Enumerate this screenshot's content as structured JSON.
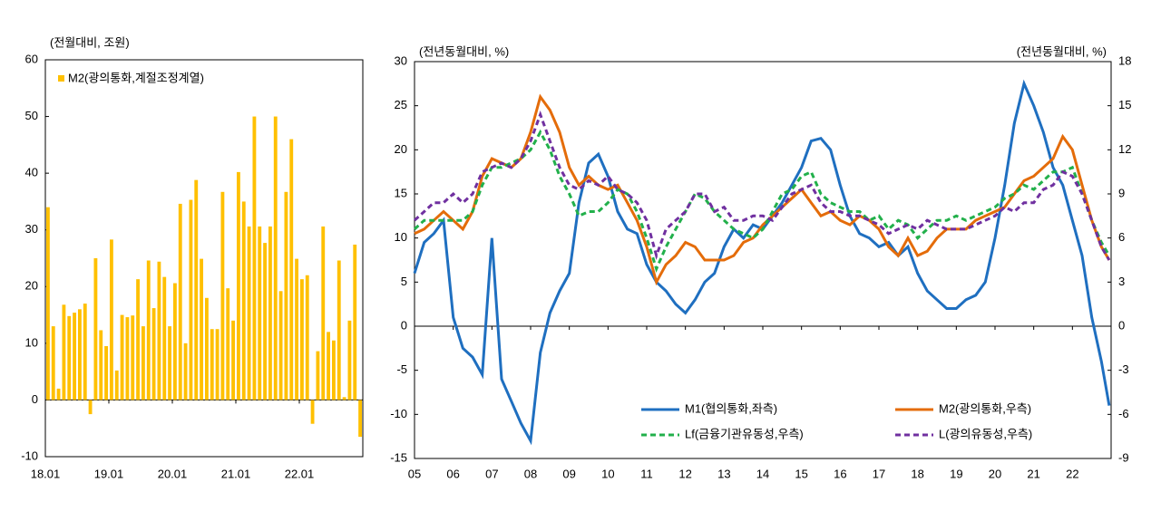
{
  "chart_data": [
    {
      "type": "bar",
      "ylabel": "(전월대비, 조원)",
      "categories": [
        "18.01",
        null,
        null,
        null,
        null,
        null,
        null,
        null,
        null,
        null,
        null,
        null,
        "19.01",
        null,
        null,
        null,
        null,
        null,
        null,
        null,
        null,
        null,
        null,
        null,
        "20.01",
        null,
        null,
        null,
        null,
        null,
        null,
        null,
        null,
        null,
        null,
        null,
        "21.01",
        null,
        null,
        null,
        null,
        null,
        null,
        null,
        null,
        null,
        null,
        null,
        "22.01",
        null,
        null,
        null,
        null,
        null,
        null,
        null,
        null,
        null,
        null,
        null
      ],
      "series": [
        {
          "name": "M2(광의통화,계절조정계열)",
          "color": "#ffc000",
          "values": [
            34,
            13,
            2,
            16.8,
            14.8,
            15.4,
            16,
            17,
            -2.5,
            25,
            12.3,
            9.5,
            28.3,
            5.2,
            15,
            14.6,
            14.9,
            21.3,
            13,
            24.6,
            16.2,
            24.4,
            21.7,
            13,
            20.6,
            34.6,
            10,
            35.3,
            38.8,
            24.9,
            18,
            12.5,
            12.5,
            36.7,
            19.7,
            14,
            40.2,
            35,
            30.6,
            50,
            30.6,
            27.7,
            30.6,
            50,
            19.2,
            36.7,
            46,
            24.9,
            21.3,
            22,
            -4.2,
            8.6,
            30.6,
            12,
            10.5,
            24.6,
            0.5,
            14,
            27.4,
            -6.5
          ]
        }
      ],
      "ylim": [
        -10,
        60
      ],
      "yticks": [
        -10,
        0,
        10,
        20,
        30,
        40,
        50,
        60
      ],
      "legend": "top-left"
    },
    {
      "type": "line",
      "ylabel": "(전년동월대비, %)",
      "y2label": "(전년동월대비, %)",
      "x": [
        2005,
        2005.25,
        2005.5,
        2005.75,
        2006,
        2006.25,
        2006.5,
        2006.75,
        2007,
        2007.25,
        2007.5,
        2007.75,
        2008,
        2008.25,
        2008.5,
        2008.75,
        2009,
        2009.25,
        2009.5,
        2009.75,
        2010,
        2010.25,
        2010.5,
        2010.75,
        2011,
        2011.25,
        2011.5,
        2011.75,
        2012,
        2012.25,
        2012.5,
        2012.75,
        2013,
        2013.25,
        2013.5,
        2013.75,
        2014,
        2014.25,
        2014.5,
        2014.75,
        2015,
        2015.25,
        2015.5,
        2015.75,
        2016,
        2016.25,
        2016.5,
        2016.75,
        2017,
        2017.25,
        2017.5,
        2017.75,
        2018,
        2018.25,
        2018.5,
        2018.75,
        2019,
        2019.25,
        2019.5,
        2019.75,
        2020,
        2020.25,
        2020.5,
        2020.75,
        2021,
        2021.25,
        2021.5,
        2021.75,
        2022,
        2022.25,
        2022.5,
        2022.75,
        2022.95
      ],
      "xlim": [
        2005,
        2023
      ],
      "xticks": [
        {
          "value": 2005,
          "label": "05"
        },
        {
          "value": 2006,
          "label": "06"
        },
        {
          "value": 2007,
          "label": "07"
        },
        {
          "value": 2008,
          "label": "08"
        },
        {
          "value": 2009,
          "label": "09"
        },
        {
          "value": 2010,
          "label": "10"
        },
        {
          "value": 2011,
          "label": "11"
        },
        {
          "value": 2012,
          "label": "12"
        },
        {
          "value": 2013,
          "label": "13"
        },
        {
          "value": 2014,
          "label": "14"
        },
        {
          "value": 2015,
          "label": "15"
        },
        {
          "value": 2016,
          "label": "16"
        },
        {
          "value": 2017,
          "label": "17"
        },
        {
          "value": 2018,
          "label": "18"
        },
        {
          "value": 2019,
          "label": "19"
        },
        {
          "value": 2020,
          "label": "20"
        },
        {
          "value": 2021,
          "label": "21"
        },
        {
          "value": 2022,
          "label": "22"
        }
      ],
      "ylim": [
        -15,
        30
      ],
      "yticks": [
        -15,
        -10,
        -5,
        0,
        5,
        10,
        15,
        20,
        25,
        30
      ],
      "y2lim": [
        -9,
        18
      ],
      "y2ticks": [
        -9,
        -6,
        -3,
        0,
        3,
        6,
        9,
        12,
        15,
        18
      ],
      "legend": "bottom-right",
      "series": [
        {
          "name": "M1(협의통화,좌측)",
          "color": "#1f6fc0",
          "style": "solid",
          "values": [
            6,
            9.5,
            10.5,
            12,
            1,
            -2.5,
            -3.5,
            -5.5,
            10,
            -6,
            -8.5,
            -11,
            -13,
            -3,
            1.5,
            4,
            6,
            14,
            18.5,
            19.5,
            17,
            13,
            11,
            10.5,
            7,
            5,
            4,
            2.5,
            1.5,
            3,
            5,
            6,
            9,
            11,
            10,
            11.5,
            11,
            12.5,
            14,
            16,
            18,
            21,
            21.3,
            20,
            16,
            12.5,
            10.5,
            10,
            9,
            9.5,
            8,
            9,
            6,
            4,
            3,
            2,
            2,
            3,
            3.5,
            5,
            10,
            16,
            23,
            27.5,
            25,
            22,
            18,
            16,
            12,
            8,
            1,
            -4,
            -9
          ]
        },
        {
          "name": "M2(광의통화,우측)",
          "color": "#e46c0a",
          "style": "solid",
          "axis": "y2",
          "values": [
            6.3,
            6.6,
            7.2,
            7.8,
            7.2,
            6.6,
            7.8,
            10.2,
            11.4,
            11.1,
            10.8,
            11.4,
            13.2,
            15.6,
            14.7,
            13.2,
            10.8,
            9.6,
            10.2,
            9.6,
            9.3,
            9.6,
            8.4,
            7.2,
            5.4,
            3,
            4.2,
            4.8,
            5.7,
            5.4,
            4.5,
            4.5,
            4.5,
            4.8,
            5.7,
            6,
            6.9,
            7.5,
            8.1,
            8.7,
            9.3,
            8.4,
            7.5,
            7.8,
            7.2,
            6.9,
            7.5,
            7.2,
            6.6,
            5.4,
            4.8,
            6,
            4.8,
            5.1,
            6,
            6.6,
            6.6,
            6.6,
            7.2,
            7.5,
            7.8,
            8.1,
            9,
            9.9,
            10.2,
            10.8,
            11.4,
            12.9,
            12,
            9.6,
            7.2,
            5.4,
            4.5
          ]
        },
        {
          "name": "Lf(금융기관유동성,우측)",
          "color": "#22b04b",
          "style": "dashed",
          "axis": "y2",
          "values": [
            6.6,
            7.2,
            7.2,
            7.2,
            7.2,
            7.2,
            7.8,
            9.6,
            10.8,
            10.8,
            11.1,
            11.4,
            12,
            13.2,
            12,
            10.2,
            9,
            7.5,
            7.8,
            7.8,
            8.4,
            9.3,
            9,
            7.8,
            6,
            3.9,
            5.4,
            6.6,
            7.8,
            9,
            8.7,
            7.8,
            7.2,
            6.6,
            6.3,
            6,
            6.6,
            7.8,
            9,
            9.3,
            10.2,
            10.5,
            9,
            8.4,
            8.1,
            7.8,
            7.8,
            7.2,
            7.5,
            6.6,
            7.2,
            6.9,
            6,
            6.6,
            7.2,
            7.2,
            7.5,
            7.2,
            7.5,
            7.8,
            8.1,
            8.7,
            9,
            9.6,
            9.3,
            9.9,
            10.5,
            10.5,
            10.8,
            9,
            7.2,
            5.7,
            4.8
          ]
        },
        {
          "name": "L(광의유동성,우측)",
          "color": "#7030a0",
          "style": "dashed",
          "axis": "y2",
          "values": [
            7.2,
            7.8,
            8.4,
            8.4,
            9,
            8.4,
            9,
            10.5,
            10.8,
            11.1,
            10.8,
            11.4,
            12.6,
            14.4,
            12.6,
            10.8,
            9.6,
            9.3,
            9.9,
            9.6,
            10.2,
            9.3,
            9,
            8.4,
            7.2,
            4.8,
            6.6,
            7.2,
            7.8,
            9,
            9,
            7.8,
            8.1,
            7.2,
            7.2,
            7.5,
            7.5,
            7.2,
            8.1,
            9,
            9.3,
            9.6,
            8.4,
            7.8,
            7.8,
            7.5,
            7.5,
            7.2,
            6.9,
            6.3,
            6.6,
            6.9,
            6.6,
            7.2,
            6.9,
            6.6,
            6.6,
            6.6,
            6.9,
            7.2,
            7.5,
            8.1,
            7.8,
            8.4,
            8.4,
            9.3,
            9.6,
            10.5,
            10.2,
            9,
            7.2,
            5.4,
            4.5
          ]
        }
      ]
    }
  ]
}
